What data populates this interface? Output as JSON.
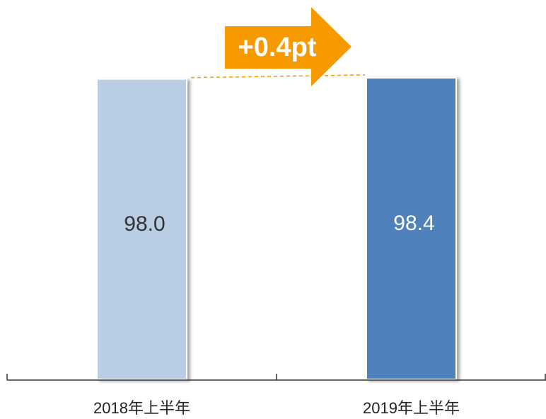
{
  "chart_data": {
    "type": "bar",
    "categories": [
      "2018年上半年",
      "2019年上半年"
    ],
    "values": [
      98.0,
      98.4
    ],
    "value_labels": [
      "98.0",
      "98.4"
    ],
    "colors": [
      "#b9cde5",
      "#4f81bd"
    ],
    "label_colors": [
      "#333333",
      "#ffffff"
    ],
    "ylim": [
      0,
      100
    ],
    "annotation": "+0.4pt",
    "annotation_color": "#f79a00"
  }
}
